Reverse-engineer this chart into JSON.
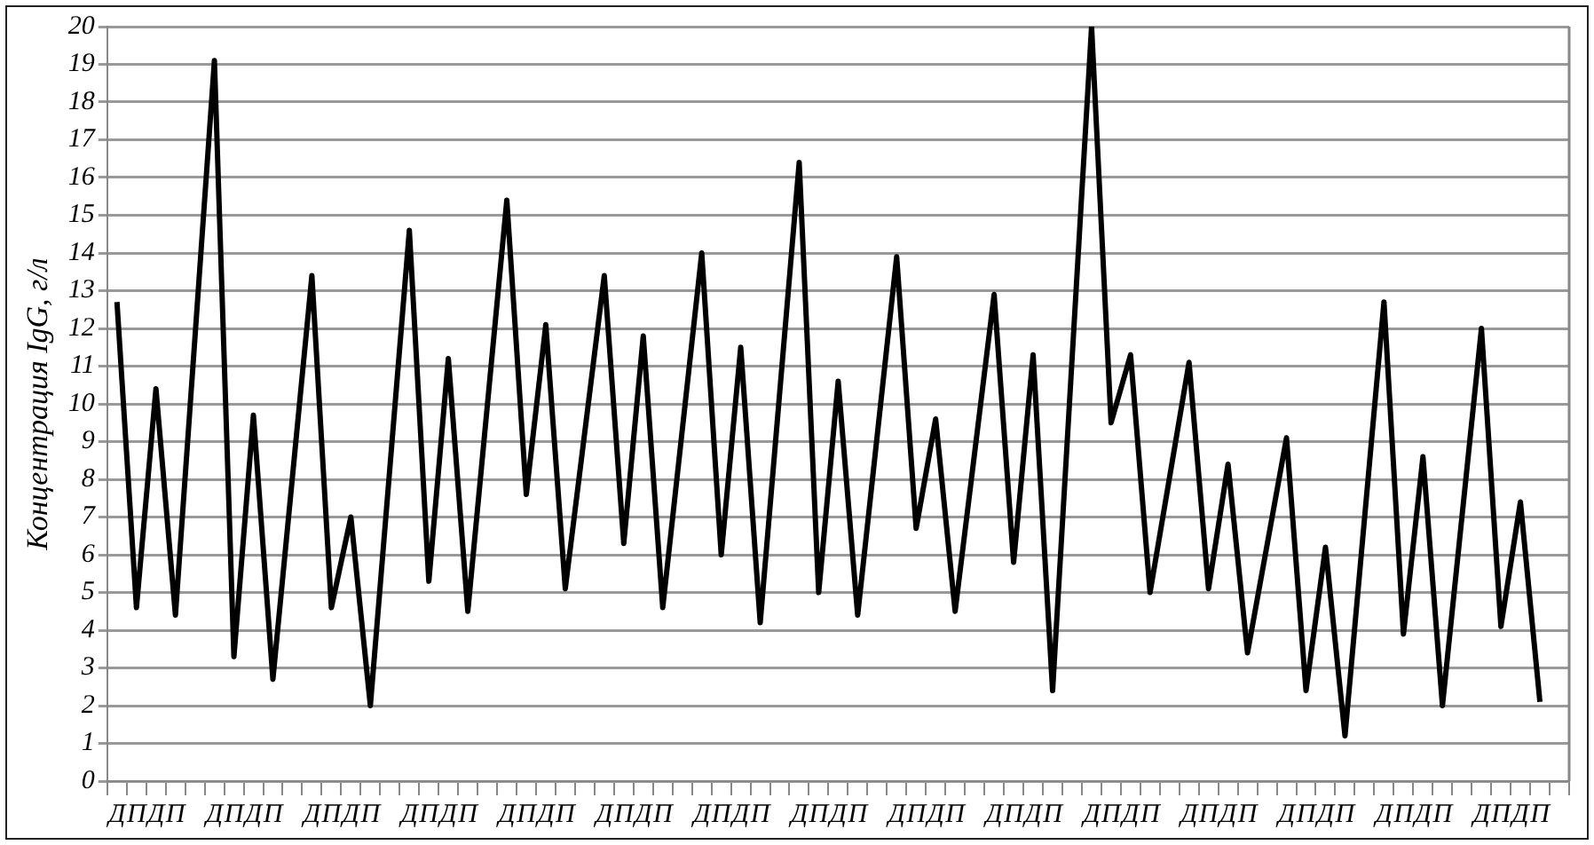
{
  "chart_data": {
    "type": "line",
    "ylabel": "Концентрация IgG, г/л",
    "categories": [
      "Д",
      "П",
      "Д",
      "П",
      null,
      "Д",
      "П",
      "Д",
      "П",
      null,
      "Д",
      "П",
      "Д",
      "П",
      null,
      "Д",
      "П",
      "Д",
      "П",
      null,
      "Д",
      "П",
      "Д",
      "П",
      null,
      "Д",
      "П",
      "Д",
      "П",
      null,
      "Д",
      "П",
      "Д",
      "П",
      null,
      "Д",
      "П",
      "Д",
      "П",
      null,
      "Д",
      "П",
      "Д",
      "П",
      null,
      "Д",
      "П",
      "Д",
      "П",
      null,
      "Д",
      "П",
      "Д",
      "П",
      null,
      "Д",
      "П",
      "Д",
      "П",
      null,
      "Д",
      "П",
      "Д",
      "П",
      null,
      "Д",
      "П",
      "Д",
      "П",
      null,
      "Д",
      "П",
      "Д",
      "П",
      null
    ],
    "series": [
      {
        "color": "#000000",
        "line_style": "solid",
        "values": [
          12.7,
          4.6,
          10.4,
          4.4,
          null,
          19.1,
          3.3,
          9.7,
          2.7,
          null,
          13.4,
          4.6,
          7.0,
          2.0,
          null,
          14.6,
          5.3,
          11.2,
          4.5,
          null,
          15.4,
          7.6,
          12.1,
          5.1,
          null,
          13.4,
          6.3,
          11.8,
          4.6,
          null,
          14.0,
          6.0,
          11.5,
          4.2,
          null,
          16.4,
          5.0,
          10.6,
          4.4,
          null,
          13.9,
          6.7,
          9.6,
          4.5,
          null,
          12.9,
          5.8,
          11.3,
          2.4,
          null,
          20.0,
          9.5,
          11.3,
          5.0,
          null,
          11.1,
          5.1,
          8.4,
          3.4,
          null,
          9.1,
          2.4,
          6.2,
          1.2,
          null,
          12.7,
          3.9,
          8.6,
          2.0,
          null,
          12.0,
          4.1,
          7.4,
          2.1,
          null
        ]
      }
    ],
    "ylim": [
      0,
      20
    ],
    "yticks": [
      0,
      1,
      2,
      3,
      4,
      5,
      6,
      7,
      8,
      9,
      10,
      11,
      12,
      13,
      14,
      15,
      16,
      17,
      18,
      19,
      20
    ],
    "grid": "y",
    "legend": false,
    "marker": "none"
  }
}
